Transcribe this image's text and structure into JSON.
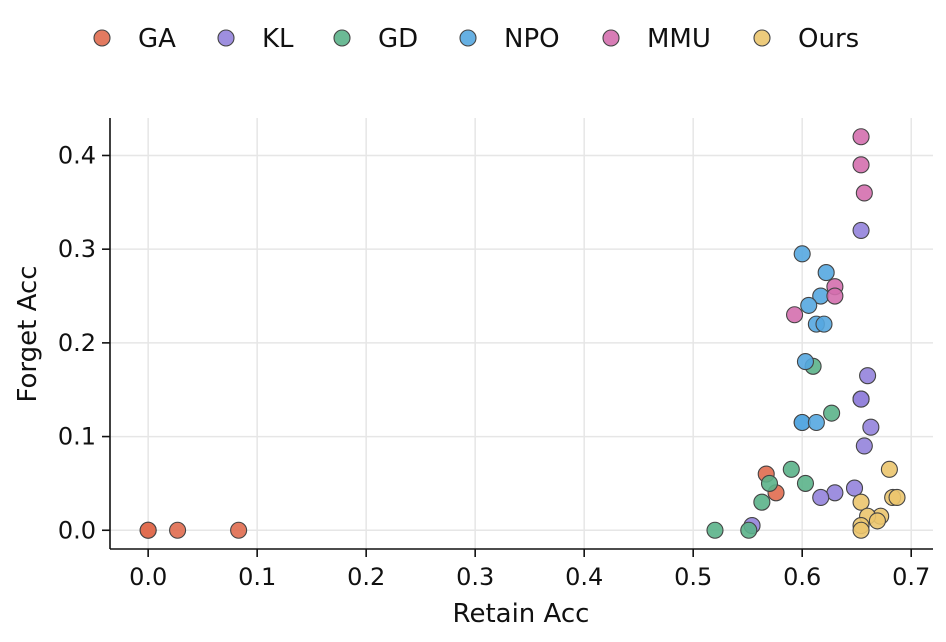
{
  "chart_data": {
    "type": "scatter",
    "title": "",
    "xlabel": "Retain Acc",
    "ylabel": "Forget Acc",
    "xlim": [
      -0.035,
      0.72
    ],
    "ylim": [
      -0.02,
      0.44
    ],
    "xticks": [
      0.0,
      0.1,
      0.2,
      0.3,
      0.4,
      0.5,
      0.6,
      0.7
    ],
    "xtick_labels": [
      "0.0",
      "0.1",
      "0.2",
      "0.3",
      "0.4",
      "0.5",
      "0.6",
      "0.7"
    ],
    "yticks": [
      0.0,
      0.1,
      0.2,
      0.3,
      0.4
    ],
    "ytick_labels": [
      "0.0",
      "0.1",
      "0.2",
      "0.3",
      "0.4"
    ],
    "grid": true,
    "legend_position": "top",
    "series": [
      {
        "name": "GA",
        "color": "#e06c4f",
        "x": [
          0.0,
          0.0,
          0.027,
          0.083,
          0.567,
          0.576
        ],
        "y": [
          0.0,
          0.0,
          0.0,
          0.0,
          0.06,
          0.04
        ]
      },
      {
        "name": "KL",
        "color": "#9383dc",
        "x": [
          0.654,
          0.654,
          0.66,
          0.654,
          0.663,
          0.657,
          0.648,
          0.63,
          0.617,
          0.554
        ],
        "y": [
          0.32,
          0.14,
          0.165,
          0.14,
          0.11,
          0.09,
          0.045,
          0.04,
          0.035,
          0.005
        ]
      },
      {
        "name": "GD",
        "color": "#5bb38a",
        "x": [
          0.61,
          0.627,
          0.59,
          0.57,
          0.603,
          0.563,
          0.52,
          0.551
        ],
        "y": [
          0.175,
          0.125,
          0.065,
          0.05,
          0.05,
          0.03,
          0.0,
          0.0
        ]
      },
      {
        "name": "NPO",
        "color": "#55a7e0",
        "x": [
          0.6,
          0.622,
          0.617,
          0.606,
          0.613,
          0.62,
          0.603,
          0.6,
          0.6,
          0.613
        ],
        "y": [
          0.295,
          0.275,
          0.25,
          0.24,
          0.22,
          0.22,
          0.18,
          0.115,
          0.115,
          0.115
        ]
      },
      {
        "name": "MMU",
        "color": "#d46fae",
        "x": [
          0.654,
          0.654,
          0.657,
          0.63,
          0.63,
          0.593
        ],
        "y": [
          0.42,
          0.39,
          0.36,
          0.26,
          0.25,
          0.23
        ]
      },
      {
        "name": "Ours",
        "color": "#ebc56e",
        "x": [
          0.68,
          0.654,
          0.683,
          0.687,
          0.672,
          0.66,
          0.669,
          0.654,
          0.654
        ],
        "y": [
          0.065,
          0.03,
          0.035,
          0.035,
          0.015,
          0.015,
          0.01,
          0.005,
          0.0
        ]
      }
    ]
  }
}
